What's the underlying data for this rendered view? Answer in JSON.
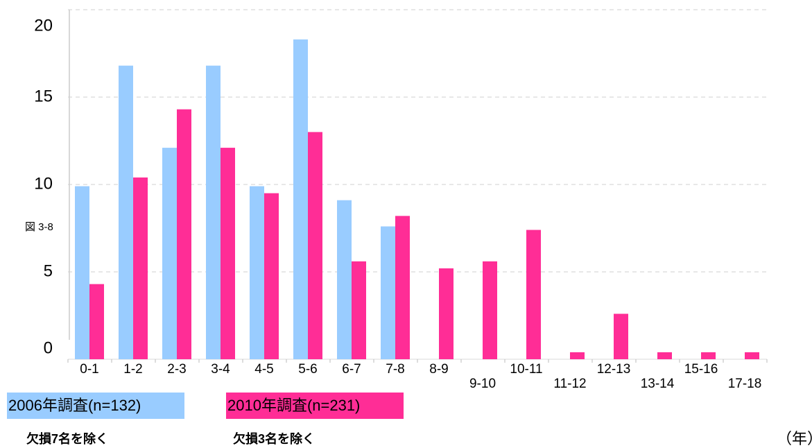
{
  "chart_data": {
    "type": "bar",
    "figure_label": "図 3-8",
    "categories": [
      "0-1",
      "1-2",
      "2-3",
      "3-4",
      "4-5",
      "5-6",
      "6-7",
      "7-8",
      "8-9",
      "9-10",
      "10-11",
      "11-12",
      "12-13",
      "13-14",
      "15-16",
      "17-18"
    ],
    "series": [
      {
        "name": "2006年調査(n=132)",
        "note": "欠損7名を除く",
        "color": "#99ccff",
        "values": [
          9.9,
          16.8,
          12.1,
          16.8,
          9.9,
          18.3,
          9.1,
          7.6,
          null,
          null,
          null,
          null,
          null,
          null,
          null,
          null
        ]
      },
      {
        "name": "2010年調査(n=231)",
        "note": "欠損3名を除く",
        "color": "#ff2d96",
        "values": [
          4.3,
          10.4,
          14.3,
          12.1,
          9.5,
          13.0,
          5.6,
          8.2,
          5.2,
          5.6,
          7.4,
          0.4,
          2.6,
          0.4,
          0.4,
          0.4
        ]
      }
    ],
    "x_unit": "（年）",
    "ylim": [
      0,
      20
    ],
    "yticks": [
      0,
      5,
      10,
      15,
      20
    ],
    "grid": true
  }
}
